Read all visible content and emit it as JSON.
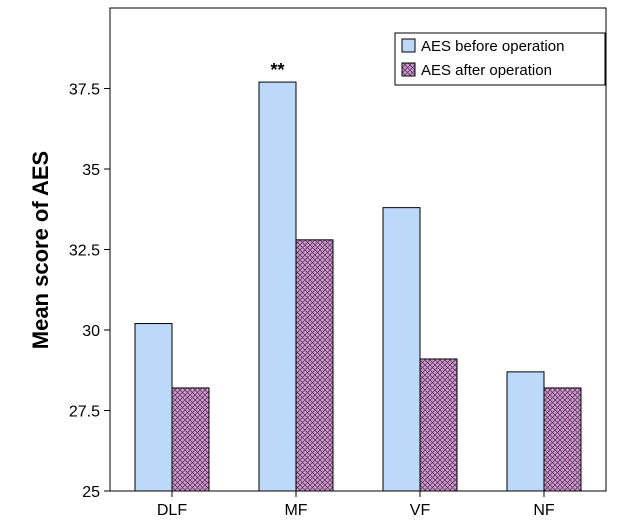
{
  "chart_data": {
    "type": "bar",
    "title": "",
    "xlabel": "",
    "ylabel": "Mean score of AES",
    "categories": [
      "DLF",
      "MF",
      "VF",
      "NF"
    ],
    "series": [
      {
        "name": "AES before operation",
        "values": [
          30.2,
          37.7,
          33.8,
          28.7
        ],
        "color": "#bcd9f9",
        "pattern": "solid"
      },
      {
        "name": "AES after operation",
        "values": [
          28.2,
          32.8,
          29.1,
          28.2
        ],
        "color": "#c8a2c8",
        "pattern": "crosshatch"
      }
    ],
    "ylim": [
      25,
      40
    ],
    "yticks": [
      25,
      27.5,
      30,
      32.5,
      35,
      37.5
    ],
    "ytick_labels": [
      "25",
      "27.5",
      "30",
      "32.5",
      "35",
      "37.5"
    ],
    "annotations": [
      {
        "category": "MF",
        "series": 0,
        "text": "**"
      }
    ],
    "legend_position": "top-right",
    "grid": false
  }
}
